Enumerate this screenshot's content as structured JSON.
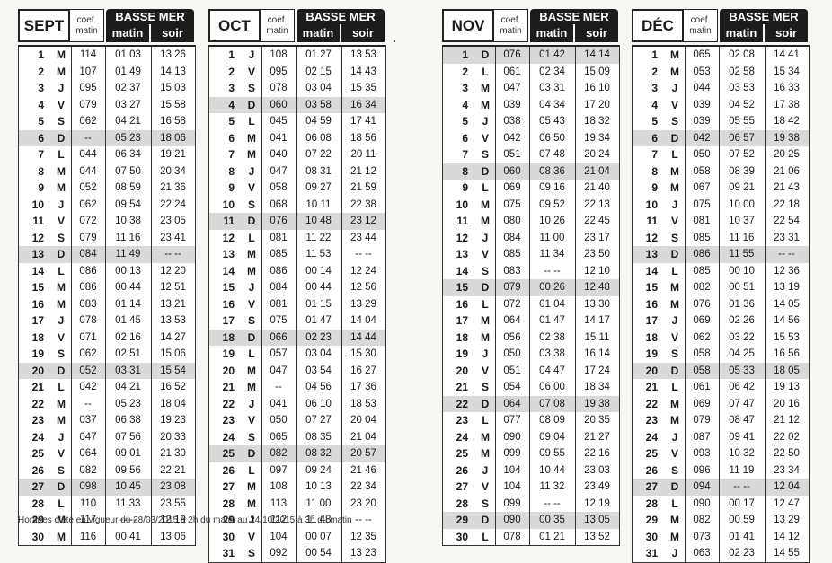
{
  "headers": {
    "coef_line1": "coef.",
    "coef_line2": "matin",
    "basse_mer": "BASSE MER",
    "matin": "matin",
    "soir": "soir"
  },
  "footer": "Horaires d'été en vigueur du 28/03/2015 à 2h du matin au 24/10/2015 à 3h du matin",
  "months": [
    {
      "name": "SEPT",
      "rows": [
        [
          "1",
          "M",
          "114",
          "01 03",
          "13 26",
          0
        ],
        [
          "2",
          "M",
          "107",
          "01 49",
          "14 13",
          0
        ],
        [
          "3",
          "J",
          "095",
          "02 37",
          "15 03",
          0
        ],
        [
          "4",
          "V",
          "079",
          "03 27",
          "15 58",
          0
        ],
        [
          "5",
          "S",
          "062",
          "04 21",
          "16 58",
          0
        ],
        [
          "6",
          "D",
          "--",
          "05 23",
          "18 06",
          1
        ],
        [
          "7",
          "L",
          "044",
          "06 34",
          "19 21",
          0
        ],
        [
          "8",
          "M",
          "044",
          "07 50",
          "20 34",
          0
        ],
        [
          "9",
          "M",
          "052",
          "08 59",
          "21 36",
          0
        ],
        [
          "10",
          "J",
          "062",
          "09 54",
          "22 24",
          0
        ],
        [
          "11",
          "V",
          "072",
          "10 38",
          "23 05",
          0
        ],
        [
          "12",
          "S",
          "079",
          "11 16",
          "23 41",
          0
        ],
        [
          "13",
          "D",
          "084",
          "11 49",
          "-- --",
          1
        ],
        [
          "14",
          "L",
          "086",
          "00 13",
          "12 20",
          0
        ],
        [
          "15",
          "M",
          "086",
          "00 44",
          "12 51",
          0
        ],
        [
          "16",
          "M",
          "083",
          "01 14",
          "13 21",
          0
        ],
        [
          "17",
          "J",
          "078",
          "01 45",
          "13 53",
          0
        ],
        [
          "18",
          "V",
          "071",
          "02 16",
          "14 27",
          0
        ],
        [
          "19",
          "S",
          "062",
          "02 51",
          "15 06",
          0
        ],
        [
          "20",
          "D",
          "052",
          "03 31",
          "15 54",
          1
        ],
        [
          "21",
          "L",
          "042",
          "04 21",
          "16 52",
          0
        ],
        [
          "22",
          "M",
          "--",
          "05 23",
          "18 04",
          0
        ],
        [
          "23",
          "M",
          "037",
          "06 38",
          "19 23",
          0
        ],
        [
          "24",
          "J",
          "047",
          "07 56",
          "20 33",
          0
        ],
        [
          "25",
          "V",
          "064",
          "09 01",
          "21 30",
          0
        ],
        [
          "26",
          "S",
          "082",
          "09 56",
          "22 21",
          0
        ],
        [
          "27",
          "D",
          "098",
          "10 45",
          "23 08",
          1
        ],
        [
          "28",
          "L",
          "110",
          "11 33",
          "23 55",
          0
        ],
        [
          "29",
          "M",
          "117",
          "-- --",
          "12 19",
          0
        ],
        [
          "30",
          "M",
          "116",
          "00 41",
          "13 06",
          0
        ]
      ]
    },
    {
      "name": "OCT",
      "rows": [
        [
          "1",
          "J",
          "108",
          "01 27",
          "13 53",
          0
        ],
        [
          "2",
          "V",
          "095",
          "02 15",
          "14 43",
          0
        ],
        [
          "3",
          "S",
          "078",
          "03 04",
          "15 35",
          0
        ],
        [
          "4",
          "D",
          "060",
          "03 58",
          "16 34",
          1
        ],
        [
          "5",
          "L",
          "045",
          "04 59",
          "17 41",
          0
        ],
        [
          "6",
          "M",
          "041",
          "06 08",
          "18 56",
          0
        ],
        [
          "7",
          "M",
          "040",
          "07 22",
          "20 11",
          0
        ],
        [
          "8",
          "J",
          "047",
          "08 31",
          "21 12",
          0
        ],
        [
          "9",
          "V",
          "058",
          "09 27",
          "21 59",
          0
        ],
        [
          "10",
          "S",
          "068",
          "10 11",
          "22 38",
          0
        ],
        [
          "11",
          "D",
          "076",
          "10 48",
          "23 12",
          1
        ],
        [
          "12",
          "L",
          "081",
          "11 22",
          "23 44",
          0
        ],
        [
          "13",
          "M",
          "085",
          "11 53",
          "-- --",
          0
        ],
        [
          "14",
          "M",
          "086",
          "00 14",
          "12 24",
          0
        ],
        [
          "15",
          "J",
          "084",
          "00 44",
          "12 56",
          0
        ],
        [
          "16",
          "V",
          "081",
          "01 15",
          "13 29",
          0
        ],
        [
          "17",
          "S",
          "075",
          "01 47",
          "14 04",
          0
        ],
        [
          "18",
          "D",
          "066",
          "02 23",
          "14 44",
          1
        ],
        [
          "19",
          "L",
          "057",
          "03 04",
          "15 30",
          0
        ],
        [
          "20",
          "M",
          "047",
          "03 54",
          "16 27",
          0
        ],
        [
          "21",
          "M",
          "--",
          "04 56",
          "17 36",
          0
        ],
        [
          "22",
          "J",
          "041",
          "06 10",
          "18 53",
          0
        ],
        [
          "23",
          "V",
          "050",
          "07 27",
          "20 04",
          0
        ],
        [
          "24",
          "S",
          "065",
          "08 35",
          "21 04",
          0
        ],
        [
          "25",
          "D",
          "082",
          "08 32",
          "20 57",
          1
        ],
        [
          "26",
          "L",
          "097",
          "09 24",
          "21 46",
          0
        ],
        [
          "27",
          "M",
          "108",
          "10 13",
          "22 34",
          0
        ],
        [
          "28",
          "M",
          "113",
          "11 00",
          "23 20",
          0
        ],
        [
          "29",
          "J",
          "112",
          "11 48",
          "-- --",
          0
        ],
        [
          "30",
          "V",
          "104",
          "00 07",
          "12 35",
          0
        ],
        [
          "31",
          "S",
          "092",
          "00 54",
          "13 23",
          0
        ]
      ]
    },
    {
      "name": "NOV",
      "rows": [
        [
          "1",
          "D",
          "076",
          "01 42",
          "14 14",
          1
        ],
        [
          "2",
          "L",
          "061",
          "02 34",
          "15 09",
          0
        ],
        [
          "3",
          "M",
          "047",
          "03 31",
          "16 10",
          0
        ],
        [
          "4",
          "M",
          "039",
          "04 34",
          "17 20",
          0
        ],
        [
          "5",
          "J",
          "038",
          "05 43",
          "18 32",
          0
        ],
        [
          "6",
          "V",
          "042",
          "06 50",
          "19 34",
          0
        ],
        [
          "7",
          "S",
          "051",
          "07 48",
          "20 24",
          0
        ],
        [
          "8",
          "D",
          "060",
          "08 36",
          "21 04",
          1
        ],
        [
          "9",
          "L",
          "069",
          "09 16",
          "21 40",
          0
        ],
        [
          "10",
          "M",
          "075",
          "09 52",
          "22 13",
          0
        ],
        [
          "11",
          "M",
          "080",
          "10 26",
          "22 45",
          0
        ],
        [
          "12",
          "J",
          "084",
          "11 00",
          "23 17",
          0
        ],
        [
          "13",
          "V",
          "085",
          "11 34",
          "23 50",
          0
        ],
        [
          "14",
          "S",
          "083",
          "-- --",
          "12 10",
          0
        ],
        [
          "15",
          "D",
          "079",
          "00 26",
          "12 48",
          1
        ],
        [
          "16",
          "L",
          "072",
          "01 04",
          "13 30",
          0
        ],
        [
          "17",
          "M",
          "064",
          "01 47",
          "14 17",
          0
        ],
        [
          "18",
          "M",
          "056",
          "02 38",
          "15 11",
          0
        ],
        [
          "19",
          "J",
          "050",
          "03 38",
          "16 14",
          0
        ],
        [
          "20",
          "V",
          "051",
          "04 47",
          "17 24",
          0
        ],
        [
          "21",
          "S",
          "054",
          "06 00",
          "18 34",
          0
        ],
        [
          "22",
          "D",
          "064",
          "07 08",
          "19 38",
          1
        ],
        [
          "23",
          "L",
          "077",
          "08 09",
          "20 35",
          0
        ],
        [
          "24",
          "M",
          "090",
          "09 04",
          "21 27",
          0
        ],
        [
          "25",
          "M",
          "099",
          "09 55",
          "22 16",
          0
        ],
        [
          "26",
          "J",
          "104",
          "10 44",
          "23 03",
          0
        ],
        [
          "27",
          "V",
          "104",
          "11 32",
          "23 49",
          0
        ],
        [
          "28",
          "S",
          "099",
          "-- --",
          "12 19",
          0
        ],
        [
          "29",
          "D",
          "090",
          "00 35",
          "13 05",
          1
        ],
        [
          "30",
          "L",
          "078",
          "01 21",
          "13 52",
          0
        ]
      ]
    },
    {
      "name": "DÉC",
      "rows": [
        [
          "1",
          "M",
          "065",
          "02 08",
          "14 41",
          0
        ],
        [
          "2",
          "M",
          "053",
          "02 58",
          "15 34",
          0
        ],
        [
          "3",
          "J",
          "044",
          "03 53",
          "16 33",
          0
        ],
        [
          "4",
          "V",
          "039",
          "04 52",
          "17 38",
          0
        ],
        [
          "5",
          "S",
          "039",
          "05 55",
          "18 42",
          0
        ],
        [
          "6",
          "D",
          "042",
          "06 57",
          "19 38",
          1
        ],
        [
          "7",
          "L",
          "050",
          "07 52",
          "20 25",
          0
        ],
        [
          "8",
          "M",
          "058",
          "08 39",
          "21 06",
          0
        ],
        [
          "9",
          "M",
          "067",
          "09 21",
          "21 43",
          0
        ],
        [
          "10",
          "J",
          "075",
          "10 00",
          "22 18",
          0
        ],
        [
          "11",
          "V",
          "081",
          "10 37",
          "22 54",
          0
        ],
        [
          "12",
          "S",
          "085",
          "11 16",
          "23 31",
          0
        ],
        [
          "13",
          "D",
          "086",
          "11 55",
          "-- --",
          1
        ],
        [
          "14",
          "L",
          "085",
          "00 10",
          "12 36",
          0
        ],
        [
          "15",
          "M",
          "082",
          "00 51",
          "13 19",
          0
        ],
        [
          "16",
          "M",
          "076",
          "01 36",
          "14 05",
          0
        ],
        [
          "17",
          "J",
          "069",
          "02 26",
          "14 56",
          0
        ],
        [
          "18",
          "V",
          "062",
          "03 22",
          "15 53",
          0
        ],
        [
          "19",
          "S",
          "058",
          "04 25",
          "16 56",
          0
        ],
        [
          "20",
          "D",
          "058",
          "05 33",
          "18 05",
          1
        ],
        [
          "21",
          "L",
          "061",
          "06 42",
          "19 13",
          0
        ],
        [
          "22",
          "M",
          "069",
          "07 47",
          "20 16",
          0
        ],
        [
          "23",
          "M",
          "079",
          "08 47",
          "21 12",
          0
        ],
        [
          "24",
          "J",
          "087",
          "09 41",
          "22 02",
          0
        ],
        [
          "25",
          "V",
          "093",
          "10 32",
          "22 50",
          0
        ],
        [
          "26",
          "S",
          "096",
          "11 19",
          "23 34",
          0
        ],
        [
          "27",
          "D",
          "094",
          "-- --",
          "12 04",
          1
        ],
        [
          "28",
          "L",
          "090",
          "00 17",
          "12 47",
          0
        ],
        [
          "29",
          "M",
          "082",
          "00 59",
          "13 29",
          0
        ],
        [
          "30",
          "M",
          "073",
          "01 41",
          "14 12",
          0
        ],
        [
          "31",
          "J",
          "063",
          "02 23",
          "14 55",
          0
        ]
      ]
    }
  ]
}
